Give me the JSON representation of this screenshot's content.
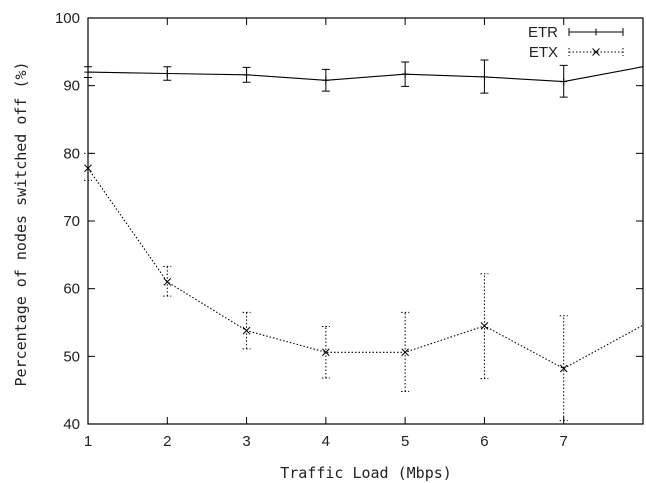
{
  "chart_data": {
    "type": "line",
    "xlabel": "Traffic Load (Mbps)",
    "ylabel": "Percentage of nodes switched off (%)",
    "xlim": [
      1,
      8
    ],
    "ylim": [
      40,
      100
    ],
    "x_ticks": [
      1,
      2,
      3,
      4,
      5,
      6,
      7
    ],
    "y_ticks": [
      40,
      50,
      60,
      70,
      80,
      90,
      100
    ],
    "grid": false,
    "legend_position": "top-right",
    "series": [
      {
        "name": "ETR",
        "line_style": "solid",
        "marker": "plus",
        "color": "#000000",
        "x": [
          1,
          2,
          3,
          4,
          5,
          6,
          7,
          8
        ],
        "values": [
          92.0,
          91.8,
          91.6,
          90.8,
          91.7,
          91.3,
          90.6,
          92.8
        ],
        "err_low": [
          91.2,
          90.8,
          90.5,
          89.2,
          89.9,
          88.9,
          88.3,
          null
        ],
        "err_high": [
          92.8,
          92.8,
          92.7,
          92.4,
          93.5,
          93.8,
          93.0,
          null
        ]
      },
      {
        "name": "ETX",
        "line_style": "dotted",
        "marker": "x",
        "color": "#000000",
        "x": [
          1,
          2,
          3,
          4,
          5,
          6,
          7,
          8
        ],
        "values": [
          77.8,
          61.0,
          53.8,
          50.6,
          50.6,
          54.5,
          48.2,
          54.6
        ],
        "err_low": [
          76.0,
          58.9,
          51.1,
          46.8,
          44.8,
          46.7,
          40.5,
          null
        ],
        "err_high": [
          80.0,
          63.3,
          56.5,
          54.4,
          56.5,
          62.2,
          56.0,
          null
        ]
      }
    ]
  }
}
